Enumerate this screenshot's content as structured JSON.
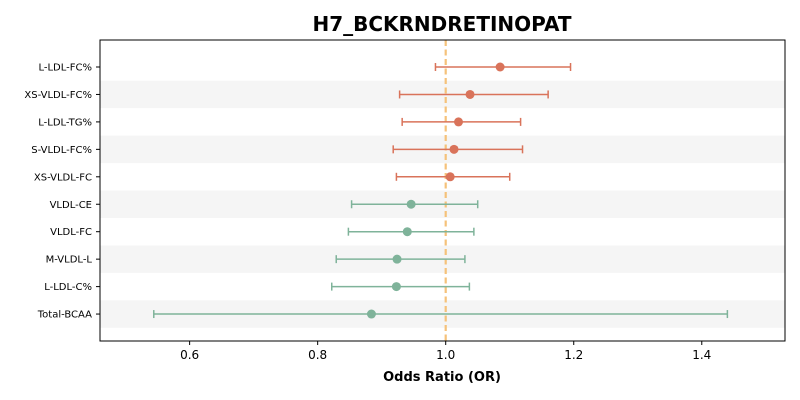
{
  "chart_data": {
    "type": "forest",
    "title": "H7_BCKRNDRETINOPAT",
    "xlabel": "Odds Ratio (OR)",
    "xlim": [
      0.46,
      1.53
    ],
    "xticks": [
      0.6,
      0.8,
      1.0,
      1.2,
      1.4
    ],
    "xtick_labels": [
      "0.6",
      "0.8",
      "1.0",
      "1.2",
      "1.4"
    ],
    "reference_line": 1.0,
    "reference_line_color": "#F5C27A",
    "colors": {
      "above": "#D9735A",
      "below": "#7FB39A",
      "band": "#F5F5F5"
    },
    "rows": [
      {
        "label": "L-LDL-FC%",
        "or": 1.085,
        "lo": 0.984,
        "hi": 1.195
      },
      {
        "label": "XS-VLDL-FC%",
        "or": 1.038,
        "lo": 0.928,
        "hi": 1.16
      },
      {
        "label": "L-LDL-TG%",
        "or": 1.02,
        "lo": 0.932,
        "hi": 1.117
      },
      {
        "label": "S-VLDL-FC%",
        "or": 1.013,
        "lo": 0.918,
        "hi": 1.12
      },
      {
        "label": "XS-VLDL-FC",
        "or": 1.007,
        "lo": 0.923,
        "hi": 1.1
      },
      {
        "label": "VLDL-CE",
        "or": 0.946,
        "lo": 0.853,
        "hi": 1.05
      },
      {
        "label": "VLDL-FC",
        "or": 0.94,
        "lo": 0.848,
        "hi": 1.044
      },
      {
        "label": "M-VLDL-L",
        "or": 0.924,
        "lo": 0.829,
        "hi": 1.03
      },
      {
        "label": "L-LDL-C%",
        "or": 0.923,
        "lo": 0.822,
        "hi": 1.037
      },
      {
        "label": "Total-BCAA",
        "or": 0.884,
        "lo": 0.544,
        "hi": 1.44
      }
    ]
  }
}
